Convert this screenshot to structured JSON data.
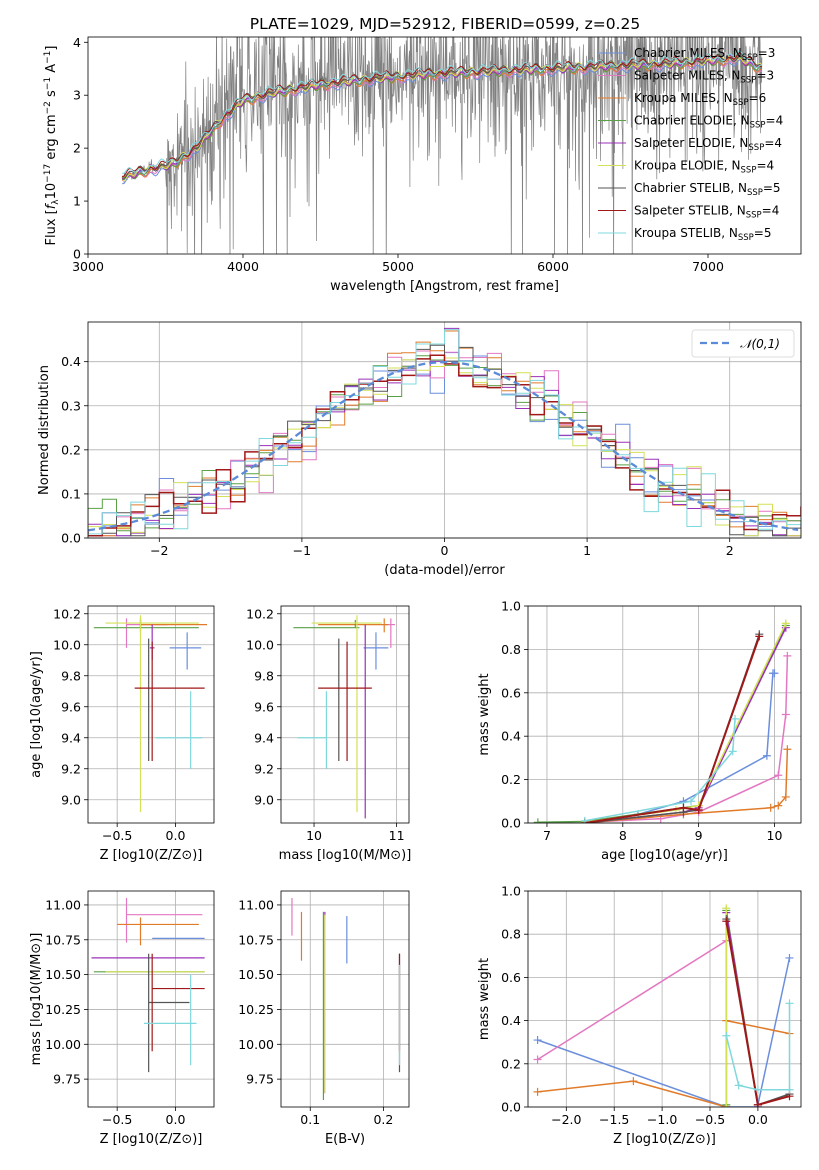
{
  "title": "PLATE=1029, MJD=52912, FIBERID=0599, z=0.25",
  "series_names": [
    "Chabrier MILES, N_SSP=3",
    "Salpeter MILES, N_SSP=3",
    "Kroupa MILES, N_SSP=6",
    "Chabrier ELODIE, N_SSP=4",
    "Salpeter ELODIE, N_SSP=4",
    "Kroupa ELODIE, N_SSP=4",
    "Chabrier STELIB, N_SSP=5",
    "Salpeter STELIB, N_SSP=4",
    "Kroupa STELIB, N_SSP=5"
  ],
  "series_colors": [
    "#6b8fdc",
    "#e377c2",
    "#e07b2a",
    "#5aa046",
    "#9b30b9",
    "#d4e157",
    "#555555",
    "#a01818",
    "#7fd8dc"
  ],
  "chart_data": [
    {
      "type": "line",
      "panel": "spectrum",
      "xlabel": "wavelength [Angstrom, rest frame]",
      "ylabel": "Flux [f_λ 10^-17 erg cm^-2 s^-1 A^-1]",
      "xlim": [
        3000,
        7600
      ],
      "ylim": [
        0,
        4.1
      ],
      "xticks": [
        3000,
        4000,
        5000,
        6000,
        7000
      ],
      "yticks": [
        0,
        1,
        2,
        3,
        4
      ],
      "data_color": "#808080",
      "continuum": {
        "x": [
          3220,
          3400,
          3550,
          3700,
          3850,
          4000,
          4200,
          4500,
          4800,
          5200,
          5600,
          6000,
          6400,
          6800,
          7200,
          7350
        ],
        "y": [
          1.45,
          1.6,
          1.7,
          2.0,
          2.5,
          2.9,
          3.05,
          3.2,
          3.3,
          3.4,
          3.45,
          3.5,
          3.55,
          3.6,
          3.7,
          3.5
        ]
      },
      "legend": "right"
    },
    {
      "type": "step",
      "panel": "residual-histogram",
      "xlabel": "(data-model)/error",
      "ylabel": "Normed distribution",
      "xlim": [
        -2.5,
        2.5
      ],
      "ylim": [
        0,
        0.49
      ],
      "xticks": [
        -2,
        -1,
        0,
        1,
        2
      ],
      "yticks": [
        0.0,
        0.1,
        0.2,
        0.3,
        0.4
      ],
      "reference": {
        "name": "𝒩(0,1)",
        "color": "#5b8bd8",
        "style": "dashed"
      },
      "bin_width": 0.1,
      "grid": true,
      "legend": "top-right"
    },
    {
      "type": "errorbar",
      "panel": "age-vs-Z",
      "xlabel": "Z [log10(Z/Z⊙)]",
      "ylabel": "age [log10(age/yr)]",
      "xlim": [
        -0.75,
        0.33
      ],
      "ylim": [
        8.85,
        10.25
      ],
      "xticks": [
        -0.5,
        0.0
      ],
      "yticks": [
        9.0,
        9.2,
        9.4,
        9.6,
        9.8,
        10.0,
        10.2
      ],
      "points": [
        {
          "x": 0.1,
          "xerr": [
            0.15,
            0.12
          ],
          "y": 9.98,
          "yerr": [
            0.14,
            0.1
          ]
        },
        {
          "x": -0.42,
          "xerr": [
            0.0,
            0.35
          ],
          "y": 10.13,
          "yerr": [
            0.15,
            0.04
          ]
        },
        {
          "x": -0.3,
          "xerr": [
            0.0,
            0.57
          ],
          "y": 10.13,
          "yerr": [
            0.05,
            0.04
          ]
        },
        {
          "x": -0.3,
          "xerr": [
            0.4,
            0.5
          ],
          "y": 10.11,
          "yerr": [
            0.0,
            0.05
          ]
        },
        {
          "x": -0.2,
          "xerr": [
            0.02,
            0.02
          ],
          "y": 9.98,
          "yerr": [
            0.08,
            0.15
          ]
        },
        {
          "x": -0.3,
          "xerr": [
            0.3,
            0.5
          ],
          "y": 10.14,
          "yerr": [
            1.22,
            0.05
          ]
        },
        {
          "x": -0.23,
          "xerr": [
            0.0,
            0.0
          ],
          "y": 9.72,
          "yerr": [
            0.47,
            0.32
          ]
        },
        {
          "x": -0.2,
          "xerr": [
            0.15,
            0.45
          ],
          "y": 9.72,
          "yerr": [
            0.47,
            0.3
          ]
        },
        {
          "x": 0.13,
          "xerr": [
            0.3,
            0.1
          ],
          "y": 9.4,
          "yerr": [
            0.2,
            0.3
          ]
        }
      ]
    },
    {
      "type": "errorbar",
      "panel": "age-vs-mass",
      "xlabel": "mass [log10(M/M⊙)]",
      "ylabel": "",
      "xlim": [
        9.6,
        11.15
      ],
      "ylim": [
        8.85,
        10.25
      ],
      "xticks": [
        10,
        11
      ],
      "yticks": [
        9.0,
        9.2,
        9.4,
        9.6,
        9.8,
        10.0,
        10.2
      ],
      "points": [
        {
          "x": 10.75,
          "xerr": [
            0.15,
            0.15
          ],
          "y": 9.98,
          "yerr": [
            0.14,
            0.1
          ]
        },
        {
          "x": 10.93,
          "xerr": [
            0.1,
            0.05
          ],
          "y": 10.13,
          "yerr": [
            0.15,
            0.04
          ]
        },
        {
          "x": 10.85,
          "xerr": [
            0.8,
            0.05
          ],
          "y": 10.13,
          "yerr": [
            0.05,
            0.04
          ]
        },
        {
          "x": 10.5,
          "xerr": [
            0.75,
            0.05
          ],
          "y": 10.11,
          "yerr": [
            0.0,
            0.05
          ]
        },
        {
          "x": 10.62,
          "xerr": [
            0.0,
            0.0
          ],
          "y": 9.98,
          "yerr": [
            1.1,
            0.15
          ]
        },
        {
          "x": 10.52,
          "xerr": [
            0.55,
            0.3
          ],
          "y": 10.14,
          "yerr": [
            1.22,
            0.05
          ]
        },
        {
          "x": 10.3,
          "xerr": [
            0.0,
            0.0
          ],
          "y": 9.72,
          "yerr": [
            0.47,
            0.32
          ]
        },
        {
          "x": 10.4,
          "xerr": [
            0.35,
            0.3
          ],
          "y": 9.72,
          "yerr": [
            0.47,
            0.3
          ]
        },
        {
          "x": 10.15,
          "xerr": [
            0.35,
            0.0
          ],
          "y": 9.4,
          "yerr": [
            0.2,
            0.3
          ]
        }
      ]
    },
    {
      "type": "line",
      "panel": "mass-weight-vs-age",
      "xlabel": "age [log10(age/yr)]",
      "ylabel": "mass weight",
      "xlim": [
        6.75,
        10.35
      ],
      "ylim": [
        0,
        1.0
      ],
      "xticks": [
        7,
        8,
        9,
        10
      ],
      "yticks": [
        0.0,
        0.2,
        0.4,
        0.6,
        0.8,
        1.0
      ],
      "series": [
        {
          "x": [
            7.5,
            8.2,
            8.8,
            9.9,
            9.98,
            10.0
          ],
          "y": [
            0.005,
            0.04,
            0.1,
            0.31,
            0.69,
            0.69
          ]
        },
        {
          "x": [
            7.5,
            8.5,
            9.0,
            10.05,
            10.15,
            10.17
          ],
          "y": [
            0.003,
            0.02,
            0.05,
            0.22,
            0.5,
            0.77
          ]
        },
        {
          "x": [
            7.5,
            8.8,
            9.95,
            10.05,
            10.15,
            10.17
          ],
          "y": [
            0.0,
            0.04,
            0.07,
            0.08,
            0.12,
            0.34
          ]
        },
        {
          "x": [
            6.88,
            7.5,
            8.8,
            9.0,
            10.15
          ],
          "y": [
            0.003,
            0.007,
            0.07,
            0.08,
            0.91
          ]
        },
        {
          "x": [
            7.5,
            8.8,
            9.0,
            10.15
          ],
          "y": [
            0.0,
            0.05,
            0.07,
            0.9
          ]
        },
        {
          "x": [
            7.5,
            8.7,
            9.0,
            10.15
          ],
          "y": [
            0.003,
            0.06,
            0.08,
            0.92
          ]
        },
        {
          "x": [
            7.5,
            8.8,
            9.0,
            9.8
          ],
          "y": [
            0.0,
            0.05,
            0.06,
            0.87
          ]
        },
        {
          "x": [
            7.5,
            8.8,
            9.0,
            9.8
          ],
          "y": [
            0.0,
            0.07,
            0.06,
            0.86
          ]
        },
        {
          "x": [
            7.5,
            8.9,
            9.45,
            9.48
          ],
          "y": [
            0.01,
            0.1,
            0.33,
            0.48
          ]
        }
      ],
      "grid": true
    },
    {
      "type": "errorbar",
      "panel": "mass-vs-Z",
      "xlabel": "Z [log10(Z/Z⊙)]",
      "ylabel": "mass [log10(M/M⊙)]",
      "xlim": [
        -0.75,
        0.33
      ],
      "ylim": [
        9.55,
        11.1
      ],
      "xticks": [
        -0.5,
        0.0
      ],
      "yticks": [
        9.75,
        10.0,
        10.25,
        10.5,
        10.75,
        11.0
      ],
      "points": [
        {
          "x": 0.0,
          "xerr": [
            0.2,
            0.25
          ],
          "y": 10.76,
          "yerr": [
            0.0,
            0.0
          ]
        },
        {
          "x": -0.42,
          "xerr": [
            0.0,
            0.65
          ],
          "y": 10.93,
          "yerr": [
            0.2,
            0.12
          ]
        },
        {
          "x": -0.3,
          "xerr": [
            0.2,
            0.5
          ],
          "y": 10.86,
          "yerr": [
            0.15,
            0.05
          ]
        },
        {
          "x": -0.3,
          "xerr": [
            0.4,
            0.55
          ],
          "y": 10.52,
          "yerr": [
            0.0,
            0.0
          ]
        },
        {
          "x": -0.2,
          "xerr": [
            0.52,
            0.45
          ],
          "y": 10.62,
          "yerr": [
            0.0,
            0.0
          ]
        },
        {
          "x": -0.3,
          "xerr": [
            0.3,
            0.55
          ],
          "y": 10.52,
          "yerr": [
            0.0,
            0.0
          ]
        },
        {
          "x": -0.23,
          "xerr": [
            0.0,
            0.35
          ],
          "y": 10.3,
          "yerr": [
            0.5,
            0.35
          ]
        },
        {
          "x": -0.2,
          "xerr": [
            0.0,
            0.45
          ],
          "y": 10.4,
          "yerr": [
            0.45,
            0.25
          ]
        },
        {
          "x": 0.13,
          "xerr": [
            0.4,
            0.05
          ],
          "y": 10.15,
          "yerr": [
            0.3,
            0.35
          ]
        }
      ]
    },
    {
      "type": "errorbar",
      "panel": "mass-vs-EBV",
      "xlabel": "E(B-V)",
      "ylabel": "",
      "xlim": [
        0.06,
        0.235
      ],
      "ylim": [
        9.55,
        11.1
      ],
      "xticks": [
        0.1,
        0.2
      ],
      "yticks": [
        9.75,
        10.0,
        10.25,
        10.5,
        10.75,
        11.0
      ],
      "points": [
        {
          "x": 0.15,
          "xerr": [
            0.0,
            0.0
          ],
          "y": 10.75,
          "yerr": [
            0.17,
            0.17
          ]
        },
        {
          "x": 0.075,
          "xerr": [
            0.0,
            0.0
          ],
          "y": 10.93,
          "yerr": [
            0.15,
            0.12
          ]
        },
        {
          "x": 0.088,
          "xerr": [
            0.0,
            0.0
          ],
          "y": 10.8,
          "yerr": [
            0.2,
            0.15
          ]
        },
        {
          "x": 0.118,
          "xerr": [
            0.0,
            0.0
          ],
          "y": 10.5,
          "yerr": [
            0.9,
            0.45
          ]
        },
        {
          "x": 0.12,
          "xerr": [
            0.0,
            0.0
          ],
          "y": 10.5,
          "yerr": [
            0.85,
            0.45
          ]
        },
        {
          "x": 0.12,
          "xerr": [
            0.0,
            0.0
          ],
          "y": 10.5,
          "yerr": [
            0.85,
            0.43
          ]
        },
        {
          "x": 0.222,
          "xerr": [
            0.0,
            0.0
          ],
          "y": 10.3,
          "yerr": [
            0.5,
            0.35
          ]
        },
        {
          "x": 0.222,
          "xerr": [
            0.0,
            0.0
          ],
          "y": 10.4,
          "yerr": [
            0.45,
            0.25
          ]
        },
        {
          "x": 0.222,
          "xerr": [
            0.0,
            0.0
          ],
          "y": 10.15,
          "yerr": [
            0.3,
            0.42
          ]
        }
      ]
    },
    {
      "type": "line",
      "panel": "mass-weight-vs-Z",
      "xlabel": "Z [log10(Z/Z⊙)]",
      "ylabel": "mass weight",
      "xlim": [
        -2.4,
        0.45
      ],
      "ylim": [
        0,
        1.0
      ],
      "xticks": [
        -2.0,
        -1.5,
        -1.0,
        -0.5,
        0.0
      ],
      "yticks": [
        0.0,
        0.2,
        0.4,
        0.6,
        0.8,
        1.0
      ],
      "series": [
        {
          "x": [
            -2.3,
            -0.33,
            0.0,
            0.0,
            0.33
          ],
          "y": [
            0.31,
            0.0,
            0.0,
            0.01,
            0.69
          ]
        },
        {
          "x": [
            -2.3,
            -0.33
          ],
          "y": [
            0.22,
            0.77
          ]
        },
        {
          "x": [
            -2.3,
            -1.3,
            -0.33,
            -0.33,
            0.33
          ],
          "y": [
            0.07,
            0.12,
            0.0,
            0.4,
            0.34
          ]
        },
        {
          "x": [
            -0.33,
            -0.33,
            0.0
          ],
          "y": [
            0.01,
            0.91,
            0.01
          ]
        },
        {
          "x": [
            -0.33,
            -0.33,
            0.0
          ],
          "y": [
            0.0,
            0.9,
            0.0
          ]
        },
        {
          "x": [
            -0.33,
            -0.33
          ],
          "y": [
            0.0,
            0.92
          ]
        },
        {
          "x": [
            -0.33,
            0.0,
            0.33
          ],
          "y": [
            0.87,
            0.01,
            0.06
          ]
        },
        {
          "x": [
            -0.33,
            0.0,
            0.33
          ],
          "y": [
            0.86,
            0.01,
            0.05
          ]
        },
        {
          "x": [
            -0.33,
            -0.2,
            0.0,
            0.33,
            0.33
          ],
          "y": [
            0.33,
            0.1,
            0.08,
            0.08,
            0.48
          ]
        }
      ],
      "grid": true
    }
  ]
}
